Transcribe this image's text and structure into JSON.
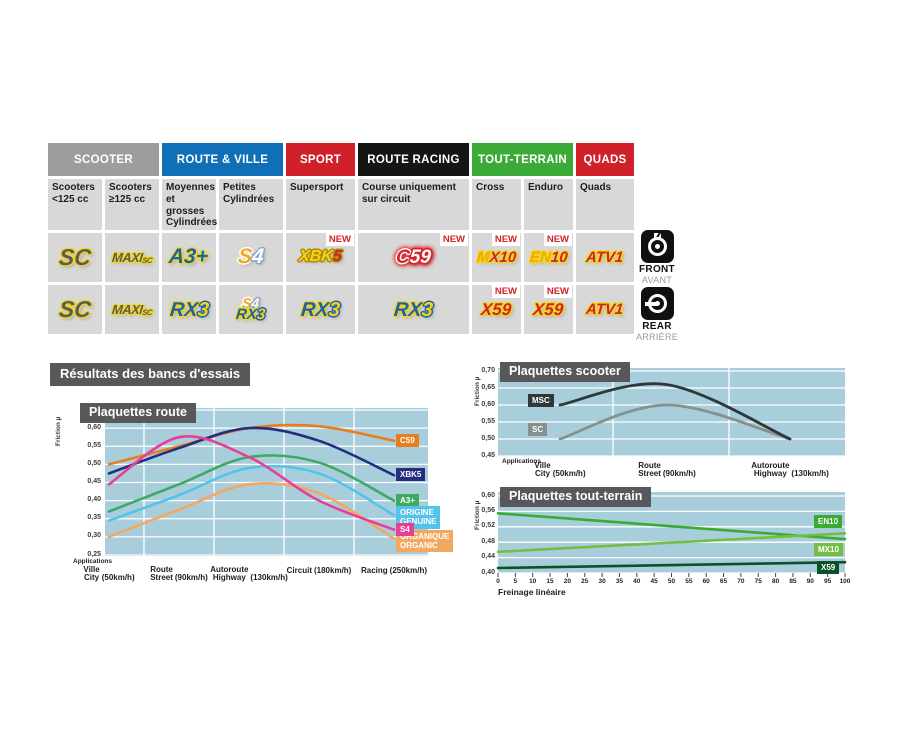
{
  "results_title": "Résultats des bancs d'essais",
  "new_badge": "NEW",
  "colors": {
    "plot_bg": "#a9cedb",
    "title_box": "#58585a",
    "cell_bg": "#d8d8d8"
  },
  "table": {
    "groups": [
      {
        "label": "SCOOTER",
        "color": "#9d9d9c",
        "span": 2
      },
      {
        "label": "ROUTE & VILLE",
        "color": "#0f70b7",
        "span": 2
      },
      {
        "label": "SPORT",
        "color": "#d0202a",
        "span": 1
      },
      {
        "label": "ROUTE RACING",
        "color": "#151515",
        "span": 1
      },
      {
        "label": "TOUT-TERRAIN",
        "color": "#3caa36",
        "span": 2
      },
      {
        "label": "QUADS",
        "color": "#d0202a",
        "span": 1
      }
    ],
    "columns": [
      "Scooters <125 cc",
      "Scooters ≥125 cc",
      "Moyennes et grosses Cylindrées",
      "Petites Cylindrées",
      "Supersport",
      "Course uniquement sur circuit",
      "Cross",
      "Enduro",
      "Quads"
    ],
    "front": {
      "en": "FRONT",
      "fr": "AVANT",
      "cells": [
        {
          "logos": [
            "SC"
          ]
        },
        {
          "logos": [
            "MAXISC"
          ]
        },
        {
          "logos": [
            "A3"
          ]
        },
        {
          "logos": [
            "S4"
          ]
        },
        {
          "logos": [
            "XBK5"
          ],
          "new": true
        },
        {
          "logos": [
            "C59"
          ],
          "new": true
        },
        {
          "logos": [
            "MX10"
          ],
          "new": true
        },
        {
          "logos": [
            "EN10"
          ],
          "new": true
        },
        {
          "logos": [
            "ATV1"
          ]
        }
      ]
    },
    "rear": {
      "en": "REAR",
      "fr": "ARRIÈRE",
      "cells": [
        {
          "logos": [
            "SC"
          ]
        },
        {
          "logos": [
            "MAXISC"
          ]
        },
        {
          "logos": [
            "RX3"
          ]
        },
        {
          "logos": [
            "S4",
            "RX3"
          ]
        },
        {
          "logos": [
            "RX3"
          ]
        },
        {
          "logos": [
            "RX3"
          ]
        },
        {
          "logos": [
            "X59"
          ],
          "new": true
        },
        {
          "logos": [
            "X59"
          ],
          "new": true
        },
        {
          "logos": [
            "ATV1"
          ]
        }
      ]
    },
    "logos": {
      "SC": {
        "outline": "#f0d722",
        "parts": [
          {
            "t": "SC",
            "c": "#5b5b5f"
          }
        ]
      },
      "MAXISC": {
        "outline": "#f0d722",
        "parts": [
          {
            "t": "MAXI",
            "c": "#5b5b5f"
          },
          {
            "t": "SC",
            "c": "#5b5b5f",
            "small": true
          }
        ]
      },
      "A3": {
        "outline": "#f0d722",
        "parts": [
          {
            "t": "A3+",
            "c": "#1d60ab"
          }
        ]
      },
      "S4": {
        "outline": "#ffffff",
        "parts": [
          {
            "t": "S",
            "c": "#f2a71f"
          },
          {
            "t": "4",
            "c": "#ffffff",
            "o": "#8aa5c5"
          }
        ]
      },
      "XBK5": {
        "outline": "#b08d00",
        "parts": [
          {
            "t": "XBK",
            "c": "#f7d117"
          },
          {
            "t": "5",
            "c": "#d2232a"
          }
        ]
      },
      "C59": {
        "outline": "#d2232a",
        "glow": true,
        "parts": [
          {
            "t": "C",
            "c": "#d2232a",
            "o": "#ffffff"
          },
          {
            "t": "59",
            "c": "#ffffff"
          }
        ]
      },
      "MX10": {
        "outline": "#f0d722",
        "parts": [
          {
            "t": "M",
            "c": "#f7a600"
          },
          {
            "t": "X10",
            "c": "#d2232a"
          }
        ]
      },
      "EN10": {
        "outline": "#f0d722",
        "parts": [
          {
            "t": "EN",
            "c": "#f7a600"
          },
          {
            "t": "10",
            "c": "#d2232a"
          }
        ]
      },
      "ATV1": {
        "outline": "#f0d722",
        "parts": [
          {
            "t": "ATV1",
            "c": "#d2232a"
          }
        ]
      },
      "RX3": {
        "outline": "#f0d722",
        "parts": [
          {
            "t": "RX",
            "c": "#1d60ab"
          },
          {
            "t": "3",
            "c": "#f7d117",
            "o": "#1d60ab"
          }
        ]
      },
      "X59": {
        "outline": "#f0d722",
        "parts": [
          {
            "t": "X59",
            "c": "#d2232a"
          }
        ]
      }
    }
  },
  "chart_data": [
    {
      "id": "route",
      "type": "line",
      "title": "Plaquettes route",
      "ylabel": "Friction µ",
      "applications_label": "Applications",
      "ylim": [
        0.25,
        0.65
      ],
      "yticks": [
        {
          "label": "0,65",
          "v": 0.65
        },
        {
          "label": "0,60",
          "v": 0.6
        },
        {
          "label": "0,55",
          "v": 0.55
        },
        {
          "label": "0,50",
          "v": 0.5
        },
        {
          "label": "0,45",
          "v": 0.45
        },
        {
          "label": "0,40",
          "v": 0.4
        },
        {
          "label": "0,35",
          "v": 0.35
        },
        {
          "label": "0,30",
          "v": 0.3
        },
        {
          "label": "0,25",
          "v": 0.25
        }
      ],
      "categories": [
        {
          "line1": "Ville",
          "line2": "City",
          "speed": "(50km/h)"
        },
        {
          "line1": "Route",
          "line2": "Street",
          "speed": "(90km/h)"
        },
        {
          "line1": "Autoroute",
          "line2": "Highway",
          "speed": "(130km/h)"
        },
        {
          "line1": "Circuit",
          "speed": "(180km/h)"
        },
        {
          "line1": "Racing",
          "speed": "(250km/h)"
        }
      ],
      "series": [
        {
          "name": "C59",
          "color": "#e87d1e",
          "legend": [
            "C59"
          ],
          "values": [
            0.5,
            0.55,
            0.6,
            0.605,
            0.565
          ]
        },
        {
          "name": "XBK5",
          "color": "#232e83",
          "legend": [
            "XBK5"
          ],
          "values": [
            0.475,
            0.545,
            0.6,
            0.565,
            0.47
          ]
        },
        {
          "name": "A3+",
          "color": "#3fa963",
          "legend": [
            "A3+"
          ],
          "values": [
            0.37,
            0.445,
            0.52,
            0.505,
            0.4
          ]
        },
        {
          "name": "ORIGINE",
          "color": "#53c3ea",
          "legend": [
            "ORIGINE",
            "GENUINE"
          ],
          "values": [
            0.345,
            0.415,
            0.49,
            0.475,
            0.36
          ]
        },
        {
          "name": "ORGANIQUE",
          "color": "#f2a95f",
          "legend": [
            "ORGANIQUE",
            "ORGANIC"
          ],
          "values": [
            0.3,
            0.375,
            0.445,
            0.42,
            0.295
          ]
        },
        {
          "name": "S4",
          "color": "#e83f96",
          "legend": [
            "S4"
          ],
          "values": [
            0.445,
            0.575,
            0.52,
            0.4,
            0.32
          ]
        }
      ]
    },
    {
      "id": "scooter",
      "type": "line",
      "title": "Plaquettes scooter",
      "ylabel": "Friction µ",
      "applications_label": "Applications",
      "ylim": [
        0.45,
        0.7
      ],
      "yticks": [
        {
          "label": "0,70",
          "v": 0.7
        },
        {
          "label": "0,65",
          "v": 0.65
        },
        {
          "label": "0,60",
          "v": 0.6
        },
        {
          "label": "0,55",
          "v": 0.55
        },
        {
          "label": "0,50",
          "v": 0.5
        },
        {
          "label": "0,45",
          "v": 0.45
        }
      ],
      "categories": [
        {
          "line1": "Ville",
          "line2": "City",
          "speed": "(50km/h)"
        },
        {
          "line1": "Route",
          "line2": "Street",
          "speed": "(90km/h)"
        },
        {
          "line1": "Autoroute",
          "line2": "Highway",
          "speed": "(130km/h)"
        }
      ],
      "series": [
        {
          "name": "SC",
          "color": "#85918f",
          "legend": [
            "SC"
          ],
          "values": [
            0.5,
            0.6,
            0.5
          ]
        },
        {
          "name": "MSC",
          "color": "#2e383a",
          "legend": [
            "MSC"
          ],
          "values": [
            0.6,
            0.66,
            0.5
          ]
        }
      ]
    },
    {
      "id": "tout-terrain",
      "type": "line",
      "title": "Plaquettes tout-terrain",
      "ylabel": "Friction µ",
      "xlabel": "Freinage linéaire",
      "ylim": [
        0.4,
        0.6
      ],
      "xlim": [
        0,
        100
      ],
      "yticks": [
        {
          "label": "0,60",
          "v": 0.6
        },
        {
          "label": "0,56",
          "v": 0.56
        },
        {
          "label": "0,52",
          "v": 0.52
        },
        {
          "label": "0,48",
          "v": 0.48
        },
        {
          "label": "0,44",
          "v": 0.44
        },
        {
          "label": "0,40",
          "v": 0.4
        }
      ],
      "xticks": [
        "0",
        "5",
        "10",
        "15",
        "20",
        "25",
        "30",
        "35",
        "40",
        "45",
        "50",
        "55",
        "60",
        "65",
        "70",
        "75",
        "80",
        "85",
        "90",
        "95",
        "100"
      ],
      "series": [
        {
          "name": "EN10",
          "color": "#3aaa35",
          "legend": [
            "EN10"
          ],
          "x": [
            0,
            100
          ],
          "values": [
            0.555,
            0.488
          ]
        },
        {
          "name": "MX10",
          "color": "#72bf44",
          "legend": [
            "MX10"
          ],
          "x": [
            0,
            100
          ],
          "values": [
            0.455,
            0.503
          ]
        },
        {
          "name": "X59",
          "color": "#0b5226",
          "legend": [
            "X59"
          ],
          "x": [
            0,
            100
          ],
          "values": [
            0.413,
            0.428
          ]
        }
      ]
    }
  ]
}
